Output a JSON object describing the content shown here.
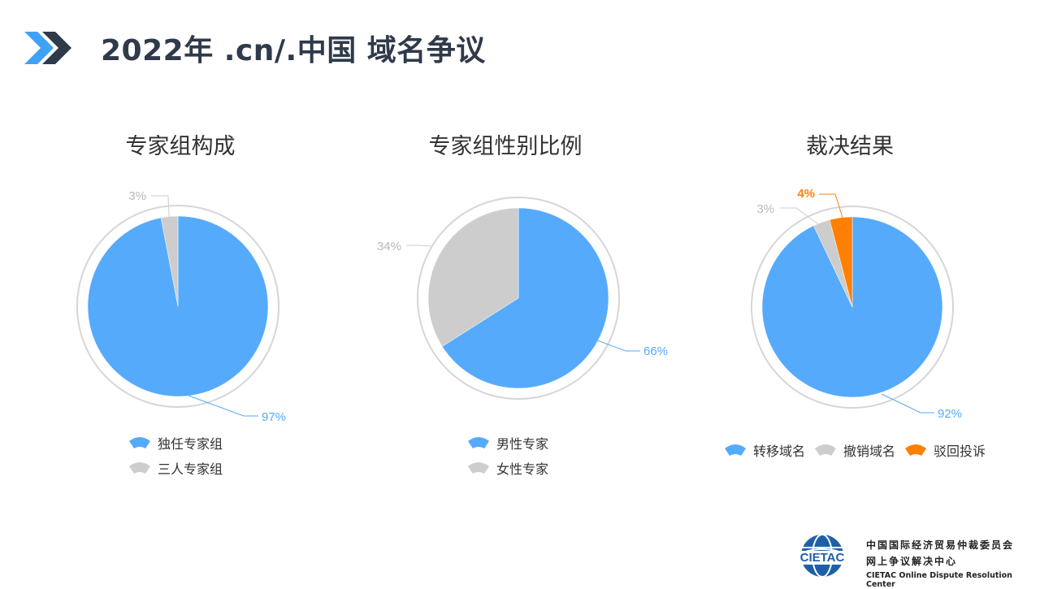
{
  "slide_title": "2022年 .cn/.中国 域名争议",
  "colors": {
    "blue": "#56aafc",
    "gray": "#cdcdcd",
    "orange": "#ff8000",
    "title": "#2f3a4a",
    "chevron_light": "#3fa2f4",
    "chevron_dark": "#2f3a4a"
  },
  "footer": {
    "logo_text": "CIETAC",
    "org_cn": "中国国际经济贸易仲裁委员会",
    "center_cn": "网上争议解决中心",
    "center_en": "CIETAC Online Dispute Resolution Center"
  },
  "chart_data": [
    {
      "type": "pie",
      "title": "专家组构成",
      "categories": [
        "独任专家组",
        "三人专家组"
      ],
      "values": [
        97,
        3
      ],
      "labels": [
        "97%",
        "3%"
      ],
      "colors": [
        "#56aafc",
        "#cdcdcd"
      ],
      "legend_position": "bottom"
    },
    {
      "type": "pie",
      "title": "专家组性别比例",
      "categories": [
        "男性专家",
        "女性专家"
      ],
      "values": [
        66,
        34
      ],
      "labels": [
        "66%",
        "34%"
      ],
      "colors": [
        "#56aafc",
        "#cdcdcd"
      ],
      "legend_position": "bottom"
    },
    {
      "type": "pie",
      "title": "裁决结果",
      "categories": [
        "转移域名",
        "撤销域名",
        "驳回投诉"
      ],
      "values": [
        92,
        3,
        4
      ],
      "labels": [
        "92%",
        "3%",
        "4%"
      ],
      "colors": [
        "#56aafc",
        "#cdcdcd",
        "#ff8000"
      ],
      "legend_position": "bottom"
    }
  ]
}
